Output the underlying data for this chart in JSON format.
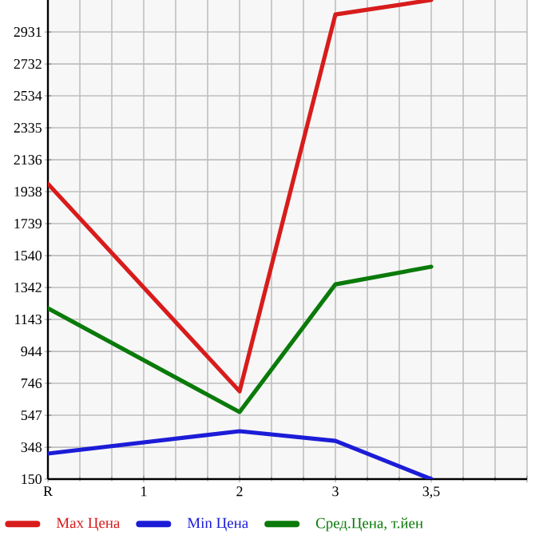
{
  "chart_data": {
    "type": "line",
    "categories": [
      "R",
      "1",
      "2",
      "3",
      "3,5"
    ],
    "series": [
      {
        "name": "Max Цена",
        "color": "#d81c1c",
        "values": [
          1987,
          null,
          696,
          3040,
          3130
        ]
      },
      {
        "name": "Min Цена",
        "color": "#1c1cd8",
        "values": [
          309,
          null,
          448,
          388,
          150
        ]
      },
      {
        "name": "Сред.Цена, т.йен",
        "color": "#0a7a0a",
        "values": [
          1213,
          null,
          567,
          1361,
          1471
        ]
      }
    ],
    "ylim": [
      150,
      3130
    ],
    "yticks": [
      150,
      348,
      547,
      746,
      944,
      1143,
      1342,
      1540,
      1739,
      1938,
      2136,
      2335,
      2534,
      2732,
      2931
    ],
    "grid": true,
    "legend": "bottom",
    "marker": "none",
    "line_style": "solid"
  }
}
